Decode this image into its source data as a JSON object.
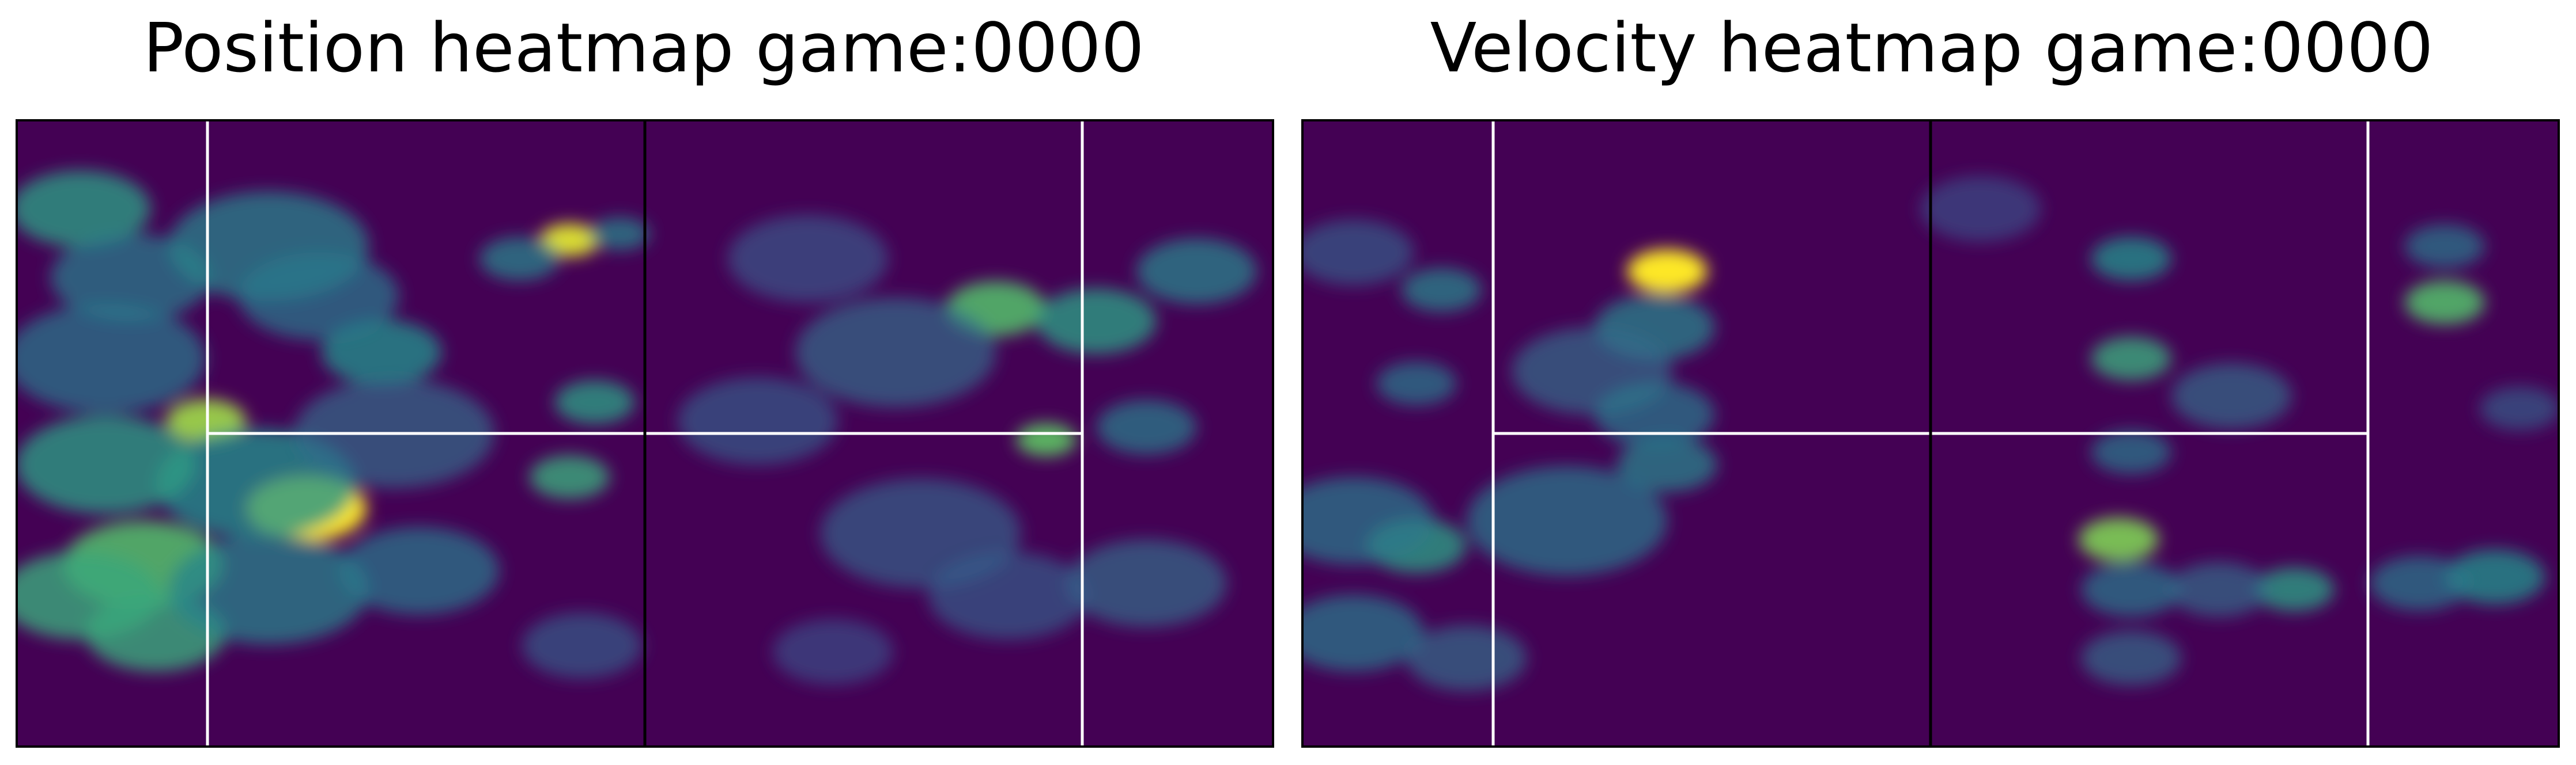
{
  "panels": [
    {
      "id": "position",
      "title": "Position heatmap game:0000",
      "chart_data": {
        "type": "heatmap",
        "title": "Position heatmap game:0000",
        "xlabel": "",
        "ylabel": "",
        "colormap": "viridis",
        "colormap_stops": [
          "#440154",
          "#3b528b",
          "#21918c",
          "#5ec962",
          "#fde725"
        ],
        "background_color": "#440154",
        "axis_ticks": false,
        "pitch_lines": {
          "halfway": "#000000",
          "box_lines": "#ffffff"
        },
        "grid": {
          "cols": 20,
          "rows": 12,
          "xlim": [
            0,
            1
          ],
          "ylim": [
            0,
            1
          ]
        },
        "hotspots": [
          {
            "x": 0.05,
            "y": 0.14,
            "intensity": 0.55,
            "spread": 0.035
          },
          {
            "x": 0.09,
            "y": 0.25,
            "intensity": 0.42,
            "spread": 0.04
          },
          {
            "x": 0.2,
            "y": 0.2,
            "intensity": 0.45,
            "spread": 0.05
          },
          {
            "x": 0.29,
            "y": 0.37,
            "intensity": 0.5,
            "spread": 0.03
          },
          {
            "x": 0.24,
            "y": 0.28,
            "intensity": 0.4,
            "spread": 0.04
          },
          {
            "x": 0.44,
            "y": 0.19,
            "intensity": 0.95,
            "spread": 0.015
          },
          {
            "x": 0.4,
            "y": 0.22,
            "intensity": 0.45,
            "spread": 0.02
          },
          {
            "x": 0.48,
            "y": 0.18,
            "intensity": 0.45,
            "spread": 0.015
          },
          {
            "x": 0.46,
            "y": 0.45,
            "intensity": 0.55,
            "spread": 0.02
          },
          {
            "x": 0.44,
            "y": 0.57,
            "intensity": 0.6,
            "spread": 0.02
          },
          {
            "x": 0.15,
            "y": 0.48,
            "intensity": 0.85,
            "spread": 0.02
          },
          {
            "x": 0.23,
            "y": 0.62,
            "intensity": 1.0,
            "spread": 0.03
          },
          {
            "x": 0.19,
            "y": 0.58,
            "intensity": 0.5,
            "spread": 0.05
          },
          {
            "x": 0.07,
            "y": 0.55,
            "intensity": 0.55,
            "spread": 0.045
          },
          {
            "x": 0.1,
            "y": 0.71,
            "intensity": 0.7,
            "spread": 0.04
          },
          {
            "x": 0.05,
            "y": 0.76,
            "intensity": 0.6,
            "spread": 0.04
          },
          {
            "x": 0.11,
            "y": 0.82,
            "intensity": 0.6,
            "spread": 0.035
          },
          {
            "x": 0.2,
            "y": 0.75,
            "intensity": 0.45,
            "spread": 0.05
          },
          {
            "x": 0.32,
            "y": 0.72,
            "intensity": 0.4,
            "spread": 0.04
          },
          {
            "x": 0.07,
            "y": 0.38,
            "intensity": 0.4,
            "spread": 0.05
          },
          {
            "x": 0.3,
            "y": 0.5,
            "intensity": 0.35,
            "spread": 0.05
          },
          {
            "x": 0.45,
            "y": 0.84,
            "intensity": 0.3,
            "spread": 0.03
          },
          {
            "x": 0.78,
            "y": 0.3,
            "intensity": 0.7,
            "spread": 0.025
          },
          {
            "x": 0.82,
            "y": 0.51,
            "intensity": 0.75,
            "spread": 0.015
          },
          {
            "x": 0.86,
            "y": 0.32,
            "intensity": 0.55,
            "spread": 0.03
          },
          {
            "x": 0.94,
            "y": 0.24,
            "intensity": 0.45,
            "spread": 0.03
          },
          {
            "x": 0.9,
            "y": 0.49,
            "intensity": 0.42,
            "spread": 0.025
          },
          {
            "x": 0.7,
            "y": 0.37,
            "intensity": 0.35,
            "spread": 0.05
          },
          {
            "x": 0.63,
            "y": 0.22,
            "intensity": 0.28,
            "spread": 0.04
          },
          {
            "x": 0.59,
            "y": 0.48,
            "intensity": 0.3,
            "spread": 0.04
          },
          {
            "x": 0.72,
            "y": 0.66,
            "intensity": 0.32,
            "spread": 0.05
          },
          {
            "x": 0.9,
            "y": 0.74,
            "intensity": 0.35,
            "spread": 0.04
          },
          {
            "x": 0.79,
            "y": 0.76,
            "intensity": 0.3,
            "spread": 0.04
          },
          {
            "x": 0.65,
            "y": 0.85,
            "intensity": 0.25,
            "spread": 0.03
          }
        ]
      }
    },
    {
      "id": "velocity",
      "title": "Velocity heatmap game:0000",
      "chart_data": {
        "type": "heatmap",
        "title": "Velocity heatmap game:0000",
        "xlabel": "",
        "ylabel": "",
        "colormap": "viridis",
        "colormap_stops": [
          "#440154",
          "#3b528b",
          "#21918c",
          "#5ec962",
          "#fde725"
        ],
        "background_color": "#440154",
        "axis_ticks": false,
        "pitch_lines": {
          "halfway": "#000000",
          "box_lines": "#ffffff"
        },
        "grid": {
          "cols": 20,
          "rows": 12,
          "xlim": [
            0,
            1
          ],
          "ylim": [
            0,
            1
          ]
        },
        "hotspots": [
          {
            "x": 0.29,
            "y": 0.24,
            "intensity": 1.0,
            "spread": 0.02
          },
          {
            "x": 0.28,
            "y": 0.33,
            "intensity": 0.45,
            "spread": 0.03
          },
          {
            "x": 0.29,
            "y": 0.55,
            "intensity": 0.45,
            "spread": 0.025
          },
          {
            "x": 0.23,
            "y": 0.4,
            "intensity": 0.35,
            "spread": 0.04
          },
          {
            "x": 0.11,
            "y": 0.27,
            "intensity": 0.45,
            "spread": 0.02
          },
          {
            "x": 0.09,
            "y": 0.42,
            "intensity": 0.4,
            "spread": 0.02
          },
          {
            "x": 0.09,
            "y": 0.68,
            "intensity": 0.55,
            "spread": 0.025
          },
          {
            "x": 0.04,
            "y": 0.64,
            "intensity": 0.4,
            "spread": 0.04
          },
          {
            "x": 0.04,
            "y": 0.82,
            "intensity": 0.4,
            "spread": 0.035
          },
          {
            "x": 0.13,
            "y": 0.86,
            "intensity": 0.35,
            "spread": 0.03
          },
          {
            "x": 0.21,
            "y": 0.64,
            "intensity": 0.4,
            "spread": 0.05
          },
          {
            "x": 0.28,
            "y": 0.47,
            "intensity": 0.4,
            "spread": 0.03
          },
          {
            "x": 0.04,
            "y": 0.21,
            "intensity": 0.3,
            "spread": 0.03
          },
          {
            "x": 0.66,
            "y": 0.22,
            "intensity": 0.5,
            "spread": 0.02
          },
          {
            "x": 0.66,
            "y": 0.38,
            "intensity": 0.6,
            "spread": 0.02
          },
          {
            "x": 0.66,
            "y": 0.53,
            "intensity": 0.4,
            "spread": 0.02
          },
          {
            "x": 0.65,
            "y": 0.67,
            "intensity": 0.8,
            "spread": 0.02
          },
          {
            "x": 0.66,
            "y": 0.75,
            "intensity": 0.4,
            "spread": 0.025
          },
          {
            "x": 0.66,
            "y": 0.86,
            "intensity": 0.35,
            "spread": 0.025
          },
          {
            "x": 0.79,
            "y": 0.75,
            "intensity": 0.55,
            "spread": 0.02
          },
          {
            "x": 0.73,
            "y": 0.75,
            "intensity": 0.35,
            "spread": 0.025
          },
          {
            "x": 0.91,
            "y": 0.29,
            "intensity": 0.7,
            "spread": 0.02
          },
          {
            "x": 0.91,
            "y": 0.2,
            "intensity": 0.4,
            "spread": 0.02
          },
          {
            "x": 0.95,
            "y": 0.73,
            "intensity": 0.5,
            "spread": 0.025
          },
          {
            "x": 0.89,
            "y": 0.74,
            "intensity": 0.4,
            "spread": 0.025
          },
          {
            "x": 0.97,
            "y": 0.46,
            "intensity": 0.3,
            "spread": 0.02
          },
          {
            "x": 0.74,
            "y": 0.44,
            "intensity": 0.35,
            "spread": 0.03
          },
          {
            "x": 0.54,
            "y": 0.14,
            "intensity": 0.25,
            "spread": 0.03
          }
        ]
      }
    }
  ]
}
